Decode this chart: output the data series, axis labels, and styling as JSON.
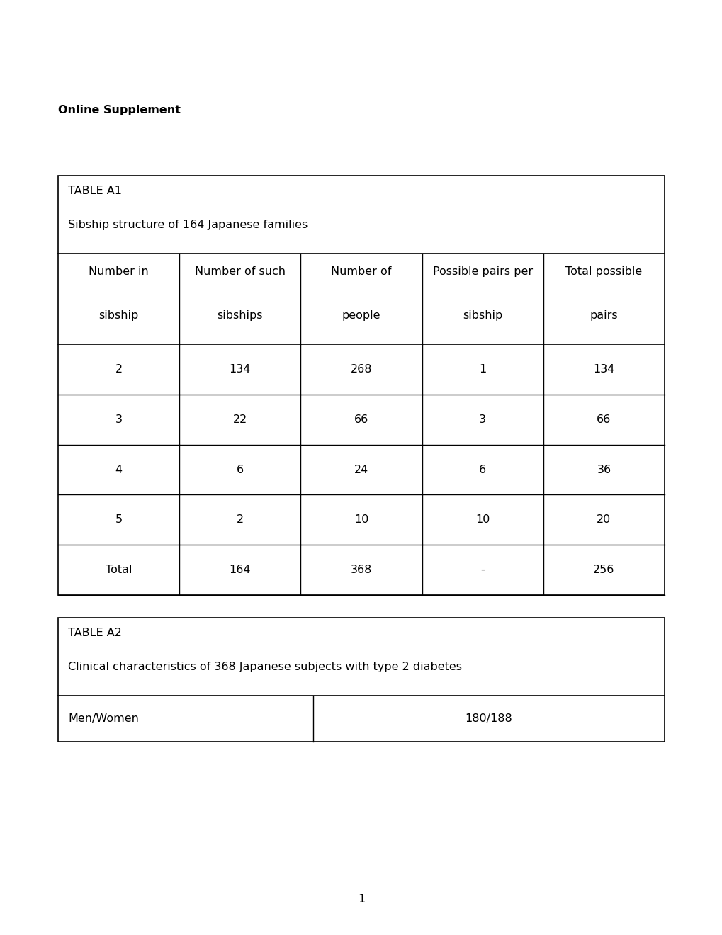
{
  "page_background": "#ffffff",
  "online_supplement_text": "Online Supplement",
  "online_supplement_fontsize": 12,
  "table_a1_title": "TABLE A1",
  "table_a1_subtitle": "Sibship structure of 164 Japanese families",
  "table_a1_col_headers_line1": [
    "Number in",
    "Number of such",
    "Number of",
    "Possible pairs per",
    "Total possible"
  ],
  "table_a1_col_headers_line2": [
    "sibship",
    "sibships",
    "people",
    "sibship",
    "pairs"
  ],
  "table_a1_data": [
    [
      "2",
      "134",
      "268",
      "1",
      "134"
    ],
    [
      "3",
      "22",
      "66",
      "3",
      "66"
    ],
    [
      "4",
      "6",
      "24",
      "6",
      "36"
    ],
    [
      "5",
      "2",
      "10",
      "10",
      "20"
    ],
    [
      "Total",
      "164",
      "368",
      "-",
      "256"
    ]
  ],
  "table_a2_title": "TABLE A2",
  "table_a2_subtitle": "Clinical characteristics of 368 Japanese subjects with type 2 diabetes",
  "table_a2_row1_col1": "Men/Women",
  "table_a2_row1_col2": "180/188",
  "page_number": "1",
  "fontsize_body": 11.5,
  "fontsize_title": 11.5
}
